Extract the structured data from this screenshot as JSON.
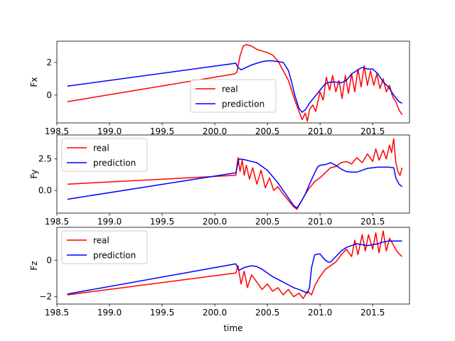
{
  "chart_data": [
    {
      "type": "line",
      "ylabel": "Fx",
      "xlim": [
        198.5,
        201.85
      ],
      "ylim": [
        -1.7,
        3.3
      ],
      "xticks": [
        "198.5",
        "199.0",
        "199.5",
        "200.0",
        "200.5",
        "201.0",
        "201.5"
      ],
      "yticks": [
        "0",
        "2"
      ],
      "legend_position": "lower-center",
      "series": [
        {
          "name": "real",
          "color": "#ff0000",
          "x": [
            198.6,
            200.19,
            200.21,
            200.24,
            200.27,
            200.3,
            200.35,
            200.4,
            200.45,
            200.5,
            200.55,
            200.6,
            200.65,
            200.7,
            200.75,
            200.8,
            200.83,
            200.86,
            200.88,
            200.9,
            200.93,
            200.96,
            201.0,
            201.03,
            201.06,
            201.09,
            201.12,
            201.15,
            201.18,
            201.21,
            201.24,
            201.27,
            201.3,
            201.33,
            201.36,
            201.39,
            201.42,
            201.45,
            201.48,
            201.51,
            201.54,
            201.57,
            201.6,
            201.63,
            201.66,
            201.69,
            201.72,
            201.75,
            201.78
          ],
          "y": [
            -0.4,
            1.3,
            1.4,
            2.4,
            3.0,
            3.1,
            3.0,
            2.8,
            2.7,
            2.6,
            2.45,
            2.1,
            1.5,
            0.9,
            -0.1,
            -1.0,
            -1.5,
            -1.1,
            -1.6,
            -0.9,
            -0.6,
            -1.0,
            0.2,
            -0.3,
            1.1,
            0.3,
            1.2,
            0.2,
            0.9,
            -0.2,
            1.2,
            0.1,
            1.3,
            0.2,
            1.6,
            0.5,
            1.8,
            0.6,
            1.5,
            0.6,
            1.3,
            0.4,
            1.0,
            0.2,
            0.6,
            -0.1,
            -0.4,
            -0.9,
            -1.2
          ]
        },
        {
          "name": "prediction",
          "color": "#0000ff",
          "x": [
            198.6,
            200.2,
            200.22,
            200.25,
            200.3,
            200.35,
            200.4,
            200.45,
            200.5,
            200.55,
            200.6,
            200.65,
            200.7,
            200.73,
            200.76,
            200.8,
            200.83,
            200.86,
            200.9,
            200.95,
            201.0,
            201.05,
            201.1,
            201.15,
            201.2,
            201.25,
            201.3,
            201.35,
            201.4,
            201.45,
            201.5,
            201.55,
            201.6,
            201.65,
            201.7,
            201.75,
            201.78
          ],
          "y": [
            0.55,
            1.95,
            1.7,
            1.55,
            1.7,
            1.85,
            1.95,
            2.05,
            2.1,
            2.1,
            2.05,
            2.0,
            1.5,
            0.8,
            0.0,
            -0.8,
            -1.05,
            -0.9,
            -0.5,
            -0.1,
            0.3,
            0.7,
            0.8,
            0.8,
            0.75,
            0.9,
            1.3,
            1.5,
            1.7,
            1.6,
            1.6,
            1.3,
            0.8,
            0.5,
            0.0,
            -0.4,
            -0.5
          ]
        }
      ]
    },
    {
      "type": "line",
      "ylabel": "Fy",
      "xlim": [
        198.5,
        201.85
      ],
      "ylim": [
        -1.8,
        4.4
      ],
      "xticks": [
        "198.5",
        "199.0",
        "199.5",
        "200.0",
        "200.5",
        "201.0",
        "201.5"
      ],
      "yticks": [
        "0.0",
        "2.5"
      ],
      "legend_position": "upper-left",
      "series": [
        {
          "name": "real",
          "color": "#ff0000",
          "x": [
            198.6,
            200.2,
            200.22,
            200.24,
            200.26,
            200.28,
            200.3,
            200.33,
            200.36,
            200.4,
            200.44,
            200.48,
            200.52,
            200.56,
            200.6,
            200.65,
            200.7,
            200.75,
            200.78,
            200.82,
            200.86,
            200.9,
            200.95,
            201.0,
            201.05,
            201.1,
            201.15,
            201.2,
            201.25,
            201.3,
            201.35,
            201.4,
            201.45,
            201.5,
            201.53,
            201.56,
            201.6,
            201.63,
            201.66,
            201.68,
            201.7,
            201.72,
            201.74,
            201.76,
            201.78
          ],
          "y": [
            0.5,
            1.2,
            2.6,
            1.5,
            2.4,
            1.2,
            2.0,
            0.9,
            1.8,
            0.5,
            1.6,
            0.2,
            1.0,
            0.0,
            0.3,
            -0.3,
            -0.8,
            -1.3,
            -1.5,
            -0.9,
            -0.3,
            0.2,
            0.7,
            1.0,
            1.4,
            1.8,
            1.9,
            2.2,
            2.3,
            2.1,
            2.6,
            2.2,
            2.9,
            2.3,
            3.3,
            2.4,
            3.2,
            2.5,
            3.6,
            3.0,
            4.1,
            2.2,
            1.5,
            1.2,
            1.8
          ]
        },
        {
          "name": "prediction",
          "color": "#0000ff",
          "x": [
            198.6,
            200.2,
            200.23,
            200.28,
            200.35,
            200.4,
            200.45,
            200.5,
            200.55,
            200.6,
            200.65,
            200.7,
            200.75,
            200.78,
            200.82,
            200.86,
            200.9,
            200.95,
            200.98,
            201.0,
            201.05,
            201.1,
            201.15,
            201.2,
            201.25,
            201.3,
            201.35,
            201.4,
            201.45,
            201.5,
            201.55,
            201.6,
            201.65,
            201.7,
            201.72,
            201.75,
            201.78
          ],
          "y": [
            -0.7,
            1.4,
            2.5,
            2.45,
            2.3,
            2.2,
            1.9,
            1.6,
            1.1,
            0.6,
            0.0,
            -0.6,
            -1.2,
            -1.4,
            -0.9,
            -0.3,
            0.5,
            1.4,
            1.9,
            2.0,
            2.05,
            2.2,
            2.0,
            1.7,
            1.5,
            1.45,
            1.45,
            1.6,
            1.75,
            1.8,
            1.85,
            1.85,
            1.85,
            1.8,
            1.0,
            0.5,
            0.3
          ]
        }
      ]
    },
    {
      "type": "line",
      "ylabel": "Fz",
      "xlim": [
        198.5,
        201.85
      ],
      "ylim": [
        -2.4,
        1.8
      ],
      "xticks": [
        "198.5",
        "199.0",
        "199.5",
        "200.0",
        "200.5",
        "201.0",
        "201.5"
      ],
      "yticks": [
        "−2",
        "0"
      ],
      "xlabel": "time",
      "legend_position": "upper-left",
      "series": [
        {
          "name": "real",
          "color": "#ff0000",
          "x": [
            198.6,
            200.2,
            200.22,
            200.25,
            200.28,
            200.31,
            200.35,
            200.4,
            200.45,
            200.5,
            200.55,
            200.6,
            200.65,
            200.7,
            200.75,
            200.8,
            200.84,
            200.88,
            200.92,
            200.95,
            201.0,
            201.05,
            201.1,
            201.15,
            201.2,
            201.25,
            201.3,
            201.33,
            201.36,
            201.4,
            201.43,
            201.46,
            201.5,
            201.53,
            201.56,
            201.6,
            201.63,
            201.66,
            201.7,
            201.73,
            201.76,
            201.78
          ],
          "y": [
            -1.9,
            -0.7,
            -0.3,
            -1.3,
            -0.6,
            -1.5,
            -0.8,
            -1.2,
            -1.6,
            -1.3,
            -1.7,
            -1.5,
            -1.9,
            -1.6,
            -2.0,
            -1.8,
            -2.1,
            -1.7,
            -1.9,
            -1.4,
            -0.9,
            -0.5,
            -0.3,
            -0.1,
            0.3,
            0.6,
            0.2,
            1.1,
            0.3,
            1.4,
            0.5,
            1.4,
            0.6,
            1.5,
            0.4,
            1.6,
            0.5,
            1.2,
            0.8,
            0.5,
            0.3,
            0.2
          ]
        },
        {
          "name": "prediction",
          "color": "#0000ff",
          "x": [
            198.6,
            200.2,
            200.23,
            200.28,
            200.35,
            200.4,
            200.45,
            200.5,
            200.55,
            200.6,
            200.65,
            200.7,
            200.75,
            200.8,
            200.84,
            200.88,
            200.9,
            200.92,
            200.95,
            201.0,
            201.02,
            201.05,
            201.08,
            201.1,
            201.15,
            201.2,
            201.25,
            201.3,
            201.35,
            201.4,
            201.45,
            201.5,
            201.55,
            201.6,
            201.65,
            201.7,
            201.75,
            201.78
          ],
          "y": [
            -1.85,
            -0.2,
            -0.55,
            -0.4,
            -0.3,
            -0.35,
            -0.5,
            -0.7,
            -0.9,
            -1.05,
            -1.2,
            -1.35,
            -1.5,
            -1.6,
            -1.7,
            -1.8,
            -1.5,
            -0.4,
            0.3,
            0.35,
            0.2,
            0.0,
            -0.1,
            -0.1,
            0.2,
            0.5,
            0.7,
            0.8,
            0.9,
            0.85,
            0.8,
            0.85,
            0.9,
            1.0,
            1.05,
            1.05,
            1.05,
            1.05
          ]
        }
      ]
    }
  ]
}
